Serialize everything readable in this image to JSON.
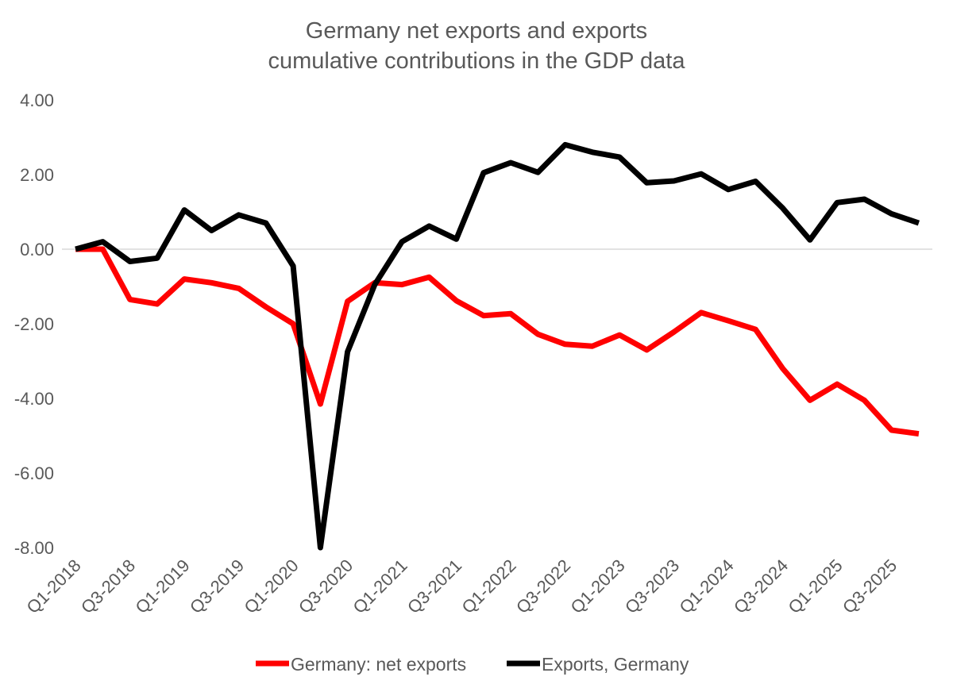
{
  "chart_data": {
    "type": "line",
    "title_lines": [
      "Germany net exports and exports",
      "cumulative contributions in the GDP data"
    ],
    "xlabel": "",
    "ylabel": "",
    "ylim": [
      -8,
      4
    ],
    "y_ticks": [
      4,
      2,
      0,
      -2,
      -4,
      -6,
      -8
    ],
    "y_tick_labels": [
      "4.00",
      "2.00",
      "0.00",
      "-2.00",
      "-4.00",
      "-6.00",
      "-8.00"
    ],
    "x": [
      "Q1-2018",
      "Q2-2018",
      "Q3-2018",
      "Q4-2018",
      "Q1-2019",
      "Q2-2019",
      "Q3-2019",
      "Q4-2019",
      "Q1-2020",
      "Q2-2020",
      "Q3-2020",
      "Q4-2020",
      "Q1-2021",
      "Q2-2021",
      "Q3-2021",
      "Q4-2021",
      "Q1-2022",
      "Q2-2022",
      "Q3-2022",
      "Q4-2022",
      "Q1-2023",
      "Q2-2023",
      "Q3-2023",
      "Q4-2023",
      "Q1-2024",
      "Q2-2024",
      "Q3-2024",
      "Q4-2024",
      "Q1-2025",
      "Q2-2025",
      "Q3-2025",
      "Q4-2025"
    ],
    "x_tick_labels": [
      "Q1-2018",
      "Q3-2018",
      "Q1-2019",
      "Q3-2019",
      "Q1-2020",
      "Q3-2020",
      "Q1-2021",
      "Q3-2021",
      "Q1-2022",
      "Q3-2022",
      "Q1-2023",
      "Q3-2023",
      "Q1-2024",
      "Q3-2024",
      "Q1-2025",
      "Q3-2025"
    ],
    "series": [
      {
        "name": "Germany: net exports",
        "color": "#ff0000",
        "values": [
          0.0,
          0.0,
          -1.35,
          -1.47,
          -0.8,
          -0.9,
          -1.05,
          -1.55,
          -2.0,
          -4.15,
          -1.4,
          -0.9,
          -0.95,
          -0.75,
          -1.38,
          -1.78,
          -1.73,
          -2.28,
          -2.55,
          -2.6,
          -2.3,
          -2.7,
          -2.22,
          -1.7,
          -1.92,
          -2.15,
          -3.2,
          -4.05,
          -3.62,
          -4.05,
          -4.85,
          -4.95
        ]
      },
      {
        "name": "Exports, Germany",
        "color": "#000000",
        "values": [
          0.0,
          0.2,
          -0.33,
          -0.24,
          1.05,
          0.5,
          0.92,
          0.7,
          -0.45,
          -8.0,
          -2.75,
          -0.95,
          0.2,
          0.62,
          0.27,
          2.05,
          2.32,
          2.06,
          2.8,
          2.6,
          2.47,
          1.78,
          1.83,
          2.02,
          1.6,
          1.82,
          1.1,
          0.25,
          1.25,
          1.34,
          0.95,
          0.7
        ]
      }
    ],
    "legend_position": "bottom",
    "grid": false
  }
}
